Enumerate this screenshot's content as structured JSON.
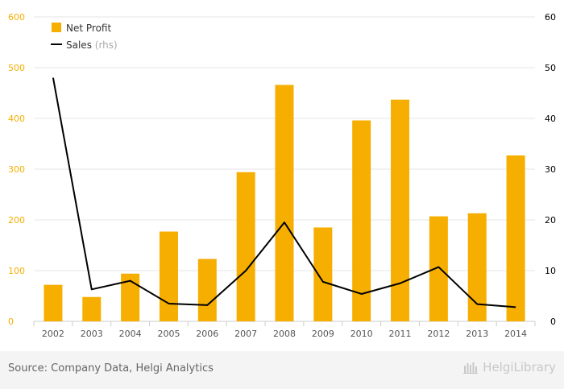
{
  "chart_data": {
    "type": "bar",
    "categories": [
      "2002",
      "2003",
      "2004",
      "2005",
      "2006",
      "2007",
      "2008",
      "2009",
      "2010",
      "2011",
      "2012",
      "2013",
      "2014"
    ],
    "series": [
      {
        "name": "Net Profit",
        "axis": "left",
        "kind": "bar",
        "color": "#f6ae00",
        "values": [
          72,
          48,
          94,
          177,
          123,
          294,
          466,
          185,
          396,
          437,
          207,
          213,
          327
        ]
      },
      {
        "name": "Sales",
        "rhs_label": "(rhs)",
        "axis": "right",
        "kind": "line",
        "color": "#000000",
        "values": [
          48,
          6.3,
          8,
          3.5,
          3.2,
          10,
          19.5,
          7.8,
          5.4,
          7.5,
          10.7,
          3.4,
          2.8
        ]
      }
    ],
    "left_axis": {
      "min": 0,
      "max": 600,
      "ticks": [
        0,
        100,
        200,
        300,
        400,
        500,
        600
      ],
      "color": "#f6ae00"
    },
    "right_axis": {
      "min": 0,
      "max": 60,
      "ticks": [
        0,
        10,
        20,
        30,
        40,
        50,
        60
      ],
      "color": "#000000"
    },
    "legend": {
      "position": "top-left"
    },
    "grid": true
  },
  "footer": {
    "source": "Source: Company Data, Helgi Analytics",
    "brand": "HelgiLibrary"
  }
}
